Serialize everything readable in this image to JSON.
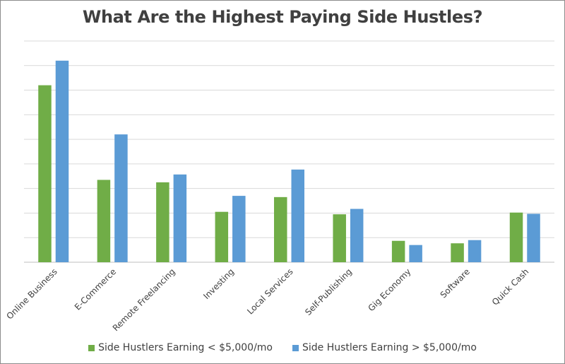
{
  "chart_data": {
    "type": "bar",
    "title": "What Are the Highest Paying Side Hustles?",
    "xlabel": "",
    "ylabel": "",
    "ylim": [
      0,
      9
    ],
    "grid": true,
    "legend_position": "bottom",
    "categories": [
      "Online Business",
      "E-Commerce",
      "Remote Freelancing",
      "Investing",
      "Local Services",
      "Self-Publishing",
      "Gig Economy",
      "Software",
      "Quick Cash"
    ],
    "series": [
      {
        "name": "Side Hustlers Earning < $5,000/mo",
        "color": "#70ad47",
        "values": [
          7.2,
          3.35,
          3.25,
          2.05,
          2.65,
          1.95,
          0.87,
          0.77,
          2.02
        ]
      },
      {
        "name": "Side Hustlers Earning > $5,000/mo",
        "color": "#5b9bd5",
        "values": [
          8.2,
          5.2,
          3.57,
          2.7,
          3.77,
          2.17,
          0.7,
          0.9,
          1.97
        ]
      }
    ]
  }
}
